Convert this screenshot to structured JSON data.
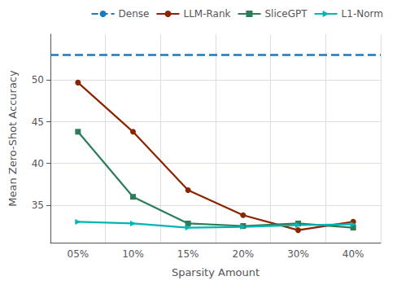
{
  "chart_data": {
    "type": "line",
    "xlabel": "Sparsity Amount",
    "ylabel": "Mean Zero-Shot Accuracy",
    "categories": [
      "05%",
      "10%",
      "15%",
      "20%",
      "30%",
      "40%"
    ],
    "series": [
      {
        "name": "Dense",
        "type": "hline",
        "value": 53.0,
        "color": "#1a7abf",
        "line_style": "dashed"
      },
      {
        "name": "LLM-Rank",
        "type": "line",
        "color": "#8B2500",
        "marker": "circle",
        "line_style": "solid",
        "values": [
          49.7,
          43.8,
          36.8,
          33.8,
          32.0,
          33.0
        ]
      },
      {
        "name": "SliceGPT",
        "type": "line",
        "color": "#2d7d5a",
        "marker": "square",
        "line_style": "solid",
        "values": [
          43.8,
          36.0,
          32.8,
          32.5,
          32.8,
          32.3
        ]
      },
      {
        "name": "L1-Norm",
        "type": "line",
        "color": "#00b5b5",
        "marker": "triangle_right",
        "line_style": "solid",
        "values": [
          33.0,
          32.8,
          32.3,
          32.4,
          32.6,
          32.7
        ]
      }
    ],
    "ylim": [
      30.5,
      55.5
    ],
    "yticks": [
      35,
      40,
      45,
      50
    ],
    "grid": true,
    "legend": "upper right"
  }
}
